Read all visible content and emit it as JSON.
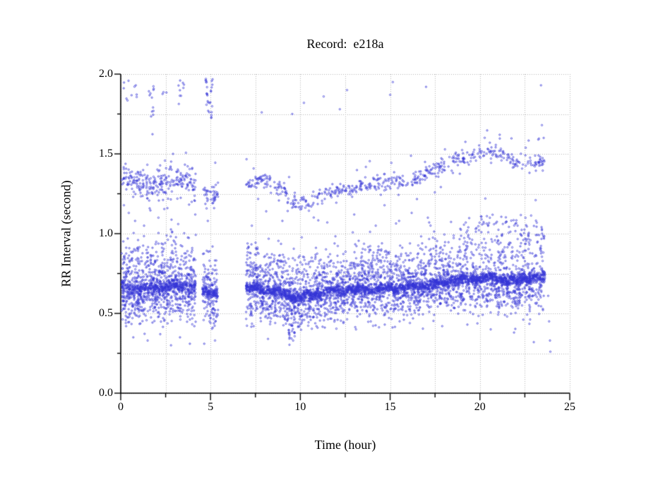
{
  "page": {
    "background": "#ffffff"
  },
  "chart": {
    "title": "Record:  e218a",
    "xlabel": "Time (hour)",
    "ylabel": "RR Interval (second)",
    "axis_color": "#000000",
    "grid_color": "#b4b4b4",
    "marker_color": "#3434d6",
    "x_axis": {
      "min": 0,
      "max": 25,
      "major_ticks": [
        0,
        5,
        10,
        15,
        20,
        25
      ],
      "tick_labels": [
        "0",
        "5",
        "10",
        "15",
        "20",
        "25"
      ],
      "minor_step": 2.5
    },
    "y_axis": {
      "min": 0,
      "max": 2,
      "major_ticks": [
        0,
        0.5,
        1.0,
        1.5,
        2.0
      ],
      "tick_labels": [
        "0.0",
        "0.5",
        "1.0",
        "1.5",
        "2.0"
      ],
      "minor_step": 0.25
    }
  },
  "chart_data": {
    "type": "scatter",
    "title": "Record:  e218a",
    "xlabel": "Time (hour)",
    "ylabel": "RR Interval (second)",
    "xlim": [
      0,
      25
    ],
    "ylim": [
      0,
      2
    ],
    "grid": {
      "on": true,
      "style": "dotted",
      "x_step": 2.5,
      "y_step": 0.25
    },
    "marker": {
      "shape": "open-circle",
      "radius_px": 1.15,
      "color": "#3434d6"
    },
    "description": "24-hour RR-interval tachogram for record e218a: a dense band of normal beats near 0.6-0.73 s with clouds of shorter/longer intervals, a sparser band near 1.2-1.5 s that dips near hour 10 and rises after hour 17, and sparse outliers near 1.8-2.0 s. Recording gaps near hours 4.2-4.55 and 5.4-7.0; data end near hour 23.6.",
    "seed": 20240613,
    "time_segments": [
      {
        "t0": 0.05,
        "t1": 4.18,
        "low_per_hour": 300,
        "up_per_hour": 62,
        "core_sigma": 0.024,
        "up_sigma": 0.048,
        "frac_core": 0.52,
        "frac_up": 0.24,
        "up_amp": 0.23,
        "low_amp": 0.085
      },
      {
        "t0": 4.55,
        "t1": 5.42,
        "low_per_hour": 280,
        "up_per_hour": 48,
        "core_sigma": 0.02,
        "up_sigma": 0.033,
        "frac_core": 0.55,
        "frac_up": 0.22,
        "up_amp": 0.2,
        "low_amp": 0.08
      },
      {
        "t0": 6.98,
        "t1": 23.62,
        "low_per_hour": 290,
        "up_per_hour": 33,
        "core_sigma": 0.019,
        "up_sigma": 0.027,
        "frac_core": 0.6,
        "frac_up": 0.22,
        "up_amp": 0.2,
        "low_amp": 0.08
      }
    ],
    "main_band_trend": [
      [
        0.05,
        0.66
      ],
      [
        0.8,
        0.655
      ],
      [
        1.6,
        0.655
      ],
      [
        2.4,
        0.665
      ],
      [
        3.2,
        0.67
      ],
      [
        3.8,
        0.665
      ],
      [
        4.18,
        0.655
      ],
      [
        4.55,
        0.64
      ],
      [
        5.0,
        0.63
      ],
      [
        5.42,
        0.63
      ],
      [
        6.98,
        0.655
      ],
      [
        7.6,
        0.655
      ],
      [
        8.4,
        0.645
      ],
      [
        9.0,
        0.625
      ],
      [
        9.5,
        0.605
      ],
      [
        10.0,
        0.598
      ],
      [
        10.5,
        0.615
      ],
      [
        11.0,
        0.63
      ],
      [
        11.8,
        0.64
      ],
      [
        12.8,
        0.65
      ],
      [
        14.0,
        0.652
      ],
      [
        15.0,
        0.655
      ],
      [
        16.0,
        0.663
      ],
      [
        16.8,
        0.672
      ],
      [
        17.5,
        0.685
      ],
      [
        18.2,
        0.7
      ],
      [
        19.0,
        0.712
      ],
      [
        19.8,
        0.718
      ],
      [
        20.5,
        0.728
      ],
      [
        21.0,
        0.72
      ],
      [
        21.5,
        0.705
      ],
      [
        21.9,
        0.7
      ],
      [
        22.4,
        0.715
      ],
      [
        22.9,
        0.722
      ],
      [
        23.3,
        0.73
      ],
      [
        23.62,
        0.72
      ]
    ],
    "upper_band_trend": [
      [
        0.05,
        1.36
      ],
      [
        0.5,
        1.33
      ],
      [
        1.0,
        1.315
      ],
      [
        1.6,
        1.3
      ],
      [
        2.2,
        1.33
      ],
      [
        2.8,
        1.345
      ],
      [
        3.4,
        1.34
      ],
      [
        4.18,
        1.32
      ],
      [
        4.55,
        1.27
      ],
      [
        5.0,
        1.24
      ],
      [
        5.42,
        1.25
      ],
      [
        6.98,
        1.315
      ],
      [
        7.6,
        1.33
      ],
      [
        8.2,
        1.33
      ],
      [
        8.8,
        1.285
      ],
      [
        9.4,
        1.23
      ],
      [
        9.9,
        1.175
      ],
      [
        10.4,
        1.19
      ],
      [
        11.0,
        1.235
      ],
      [
        11.6,
        1.26
      ],
      [
        12.3,
        1.27
      ],
      [
        13.0,
        1.29
      ],
      [
        13.8,
        1.3
      ],
      [
        14.6,
        1.315
      ],
      [
        15.3,
        1.32
      ],
      [
        16.0,
        1.335
      ],
      [
        16.6,
        1.35
      ],
      [
        17.2,
        1.385
      ],
      [
        17.9,
        1.425
      ],
      [
        18.6,
        1.455
      ],
      [
        19.3,
        1.48
      ],
      [
        20.0,
        1.5
      ],
      [
        20.7,
        1.515
      ],
      [
        21.3,
        1.5
      ],
      [
        21.8,
        1.47
      ],
      [
        22.3,
        1.445
      ],
      [
        22.8,
        1.43
      ],
      [
        23.25,
        1.455
      ],
      [
        23.62,
        1.43
      ]
    ],
    "down_spikes": [
      [
        7.9,
        0.12
      ],
      [
        8.6,
        0.14
      ],
      [
        9.38,
        0.3
      ],
      [
        9.52,
        0.27
      ],
      [
        9.68,
        0.24
      ],
      [
        9.9,
        0.18
      ],
      [
        16.35,
        0.14
      ],
      [
        18.95,
        0.16
      ],
      [
        20.4,
        0.22
      ],
      [
        21.05,
        0.18
      ],
      [
        21.95,
        0.3
      ],
      [
        22.2,
        0.25
      ],
      [
        22.75,
        0.18
      ]
    ],
    "top_outlier_clusters": [
      {
        "x": [
          0.15,
          0.95
        ],
        "y": [
          1.83,
          1.97
        ],
        "n": 10
      },
      {
        "x": [
          1.55,
          1.85
        ],
        "y": [
          1.6,
          1.96
        ],
        "n": 13
      },
      {
        "x": [
          2.3,
          2.55
        ],
        "y": [
          1.84,
          1.92
        ],
        "n": 3
      },
      {
        "x": [
          2.95,
          3.55
        ],
        "y": [
          1.8,
          1.98
        ],
        "n": 9
      },
      {
        "x": [
          4.72,
          5.12
        ],
        "y": [
          1.72,
          2.0
        ],
        "n": 28
      }
    ],
    "top_outliers": [
      [
        7.85,
        1.76
      ],
      [
        9.55,
        1.75
      ],
      [
        10.2,
        1.82
      ],
      [
        11.3,
        1.86
      ],
      [
        12.2,
        1.78
      ],
      [
        12.6,
        1.9
      ],
      [
        15.0,
        1.87
      ],
      [
        15.15,
        1.95
      ],
      [
        17.0,
        1.92
      ],
      [
        23.4,
        1.93
      ],
      [
        21.1,
        1.62
      ],
      [
        23.45,
        1.68
      ],
      [
        23.55,
        1.6
      ],
      [
        20.55,
        1.57
      ],
      [
        23.25,
        1.59
      ]
    ],
    "mid_outliers": [
      [
        0.45,
        1.13
      ],
      [
        0.8,
        1.08
      ],
      [
        1.3,
        1.05
      ],
      [
        2.1,
        1.1
      ],
      [
        2.6,
        1.16
      ],
      [
        3.2,
        1.06
      ],
      [
        4.15,
        1.12
      ],
      [
        4.85,
        1.08
      ],
      [
        5.2,
        1.16
      ],
      [
        7.3,
        1.05
      ],
      [
        8.1,
        1.14
      ],
      [
        9.0,
        1.08
      ],
      [
        11.5,
        1.07
      ],
      [
        13.0,
        1.12
      ],
      [
        14.2,
        1.05
      ],
      [
        15.5,
        1.08
      ],
      [
        16.2,
        1.13
      ],
      [
        17.1,
        1.1
      ],
      [
        20.3,
        1.22
      ],
      [
        23.1,
        1.21
      ]
    ],
    "low_outliers": [
      [
        0.3,
        0.42
      ],
      [
        0.7,
        0.35
      ],
      [
        1.5,
        0.33
      ],
      [
        2.2,
        0.37
      ],
      [
        2.8,
        0.3
      ],
      [
        3.3,
        0.35
      ],
      [
        3.85,
        0.31
      ],
      [
        4.1,
        0.42
      ],
      [
        4.65,
        0.31
      ],
      [
        5.0,
        0.44
      ],
      [
        5.25,
        0.33
      ],
      [
        7.4,
        0.42
      ],
      [
        8.2,
        0.34
      ],
      [
        8.6,
        0.44
      ],
      [
        9.4,
        0.35
      ],
      [
        9.6,
        0.33
      ],
      [
        10.9,
        0.42
      ],
      [
        12.4,
        0.44
      ],
      [
        13.1,
        0.4
      ],
      [
        14.7,
        0.43
      ],
      [
        16.1,
        0.44
      ],
      [
        17.9,
        0.42
      ],
      [
        19.3,
        0.43
      ],
      [
        20.6,
        0.4
      ],
      [
        21.9,
        0.38
      ],
      [
        23.0,
        0.32
      ],
      [
        23.8,
        0.61
      ],
      [
        23.85,
        0.45
      ],
      [
        23.9,
        0.33
      ],
      [
        23.92,
        0.26
      ]
    ]
  }
}
